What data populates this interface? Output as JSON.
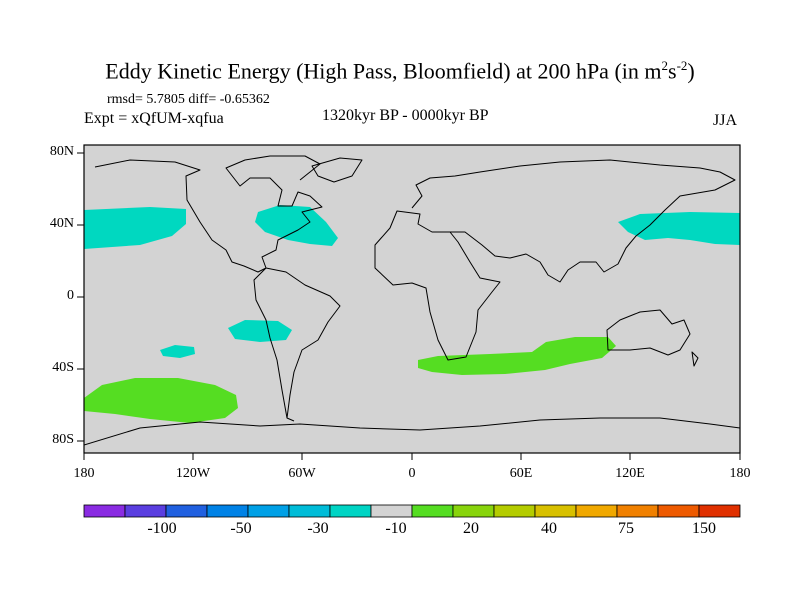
{
  "title": {
    "text": "Eddy Kinetic Energy (High Pass, Bloomfield) at 200 hPa (in m",
    "sup1": "2",
    "mid": "s",
    "sup2": "-2",
    "tail": ")"
  },
  "stats": "rmsd= 5.7805  diff= -0.65362",
  "experiment": "Expt = xQfUM-xqfua",
  "period": "1320kyr BP - 0000kyr BP",
  "season": "JJA",
  "map": {
    "lat_labels": [
      "80N",
      "40N",
      "0",
      "40S",
      "80S"
    ],
    "lon_labels": [
      "180",
      "120W",
      "60W",
      "0",
      "60E",
      "120E",
      "180"
    ],
    "background_color": "#d3d3d3",
    "field_regions": [
      {
        "name": "north-pacific-east",
        "category": "-10",
        "color": "#00d8c0"
      },
      {
        "name": "north-atlantic",
        "category": "-10",
        "color": "#00d8c0"
      },
      {
        "name": "north-pacific-west",
        "category": "-10",
        "color": "#00d8c0"
      },
      {
        "name": "subtropical-pacific-a",
        "category": "-10",
        "color": "#00d8c0"
      },
      {
        "name": "subtropical-pacific-b",
        "category": "-10",
        "color": "#00d8c0"
      },
      {
        "name": "south-pacific",
        "category": "20",
        "color": "#55dd22"
      },
      {
        "name": "south-indian-ocean",
        "category": "20",
        "color": "#55dd22"
      }
    ]
  },
  "colorbar": {
    "colors": [
      "#8a2be2",
      "#5a3ee0",
      "#2060e0",
      "#0082e6",
      "#00a0e6",
      "#00bcd8",
      "#00d4c4",
      "#d3d3d3",
      "#55dd22",
      "#88d40c",
      "#b4cc00",
      "#d8c000",
      "#f0a800",
      "#f08000",
      "#ee5a00",
      "#e03000"
    ],
    "labels": [
      "-100",
      "-50",
      "-30",
      "-10",
      "20",
      "40",
      "75",
      "150"
    ]
  }
}
